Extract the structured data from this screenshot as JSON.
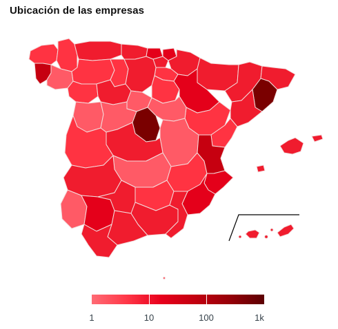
{
  "title": "Ubicación de las empresas",
  "legend": {
    "scale": "log",
    "ticks": [
      "1",
      "10",
      "100",
      "1k"
    ],
    "colors": [
      "#ff6b74",
      "#ff3848",
      "#e8001c",
      "#c2000f",
      "#960008",
      "#5c0002"
    ]
  },
  "colors": {
    "level1": "#ff5a66",
    "level2": "#ff3342",
    "level3": "#f01c2e",
    "level4": "#e4001a",
    "level5": "#c60010",
    "level6": "#960008",
    "level7": "#7a0000",
    "border": "#f2dede",
    "inset_frame": "#000000"
  }
}
